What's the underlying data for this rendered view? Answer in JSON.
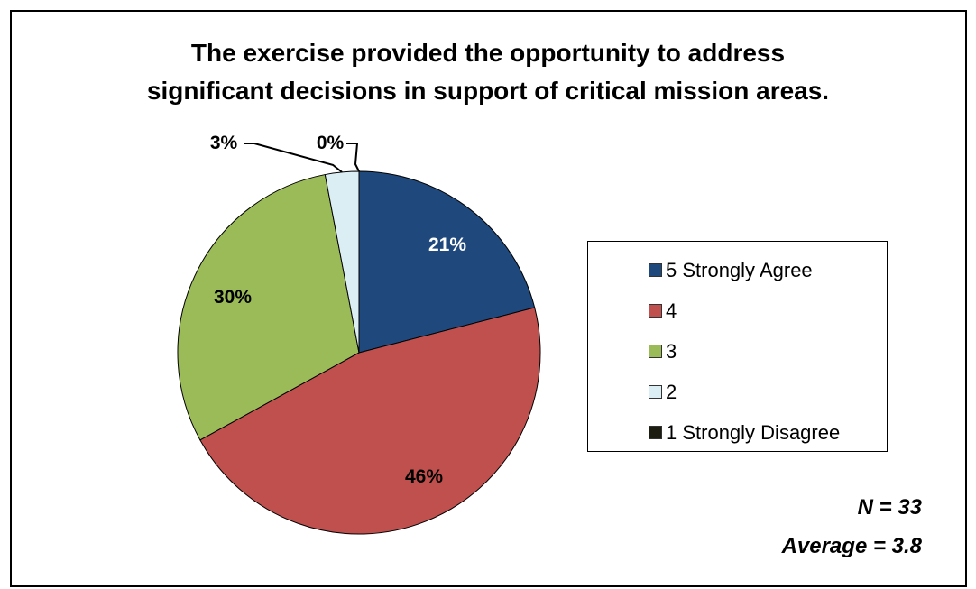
{
  "chart_data": {
    "type": "pie",
    "title": "The exercise provided the opportunity to address significant decisions in support of critical mission areas.",
    "title_lines": [
      "The exercise provided the opportunity to address",
      "significant decisions in support of critical mission areas."
    ],
    "categories": [
      "5 Strongly Agree",
      "4",
      "3",
      "2",
      "1 Strongly Disagree"
    ],
    "values": [
      21,
      46,
      30,
      3,
      0
    ],
    "labels": [
      "21%",
      "46%",
      "30%",
      "3%",
      "0%"
    ],
    "colors": [
      "#1f497d",
      "#c0504d",
      "#9bbb59",
      "#dbeef4",
      "#1c1c10"
    ],
    "label_colors": [
      "#ffffff",
      "#000000",
      "#000000",
      "#000000",
      "#000000"
    ],
    "legend_position": "right",
    "annotations": {
      "n": "N = 33",
      "average": "Average = 3.8"
    }
  }
}
